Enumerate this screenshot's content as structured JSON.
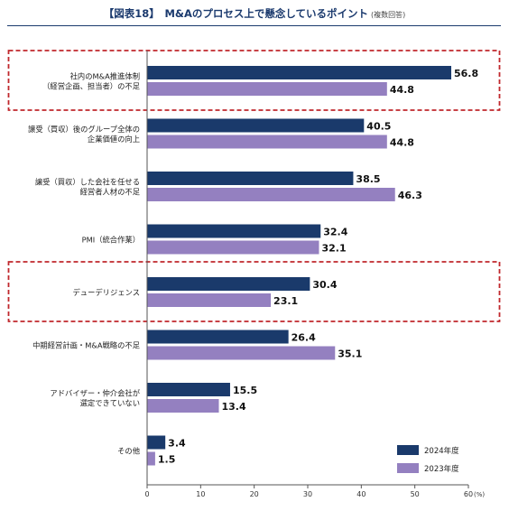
{
  "title": "【図表18】　M&Aのプロセス上で懸念しているポイント",
  "subtitle": "(複数回答)",
  "chart_data": {
    "type": "bar",
    "orientation": "horizontal",
    "categories": [
      [
        "社内のM&A推進体制",
        "（経営企画、担当者）の不足"
      ],
      [
        "譲受（買収）後のグループ全体の",
        "企業価値の向上"
      ],
      [
        "譲受（買収）した会社を任せる",
        "経営者人材の不足"
      ],
      [
        "PMI（統合作業）"
      ],
      [
        "デューデリジェンス"
      ],
      [
        "中期経営計画・M&A戦略の不足"
      ],
      [
        "アドバイザー・仲介会社が",
        "選定できていない"
      ],
      [
        "その他"
      ]
    ],
    "series": [
      {
        "name": "2024年度",
        "color": "#1a3a6b",
        "values": [
          56.8,
          40.5,
          38.5,
          32.4,
          30.4,
          26.4,
          15.5,
          3.4
        ]
      },
      {
        "name": "2023年度",
        "color": "#9480c0",
        "values": [
          44.8,
          44.8,
          46.3,
          32.1,
          23.1,
          35.1,
          13.4,
          1.5
        ]
      }
    ],
    "value_labels": [
      [
        "56.8",
        "40.5",
        "38.5",
        "32.4",
        "30.4",
        "26.4",
        "15.5",
        "3.4"
      ],
      [
        "44.8",
        "44.8",
        "46.3",
        "32.1",
        "23.1",
        "35.1",
        "13.4",
        "1.5"
      ]
    ],
    "xlim": [
      0,
      60
    ],
    "xticks": [
      0,
      10,
      20,
      30,
      40,
      50,
      60
    ],
    "xtick_labels": [
      "0",
      "10",
      "20",
      "30",
      "40",
      "50",
      "60"
    ],
    "unit_label": "(%)",
    "highlighted_categories": [
      0,
      4
    ],
    "highlight_color": "#c0282d",
    "legend_position": "bottom-right",
    "grid": false
  }
}
